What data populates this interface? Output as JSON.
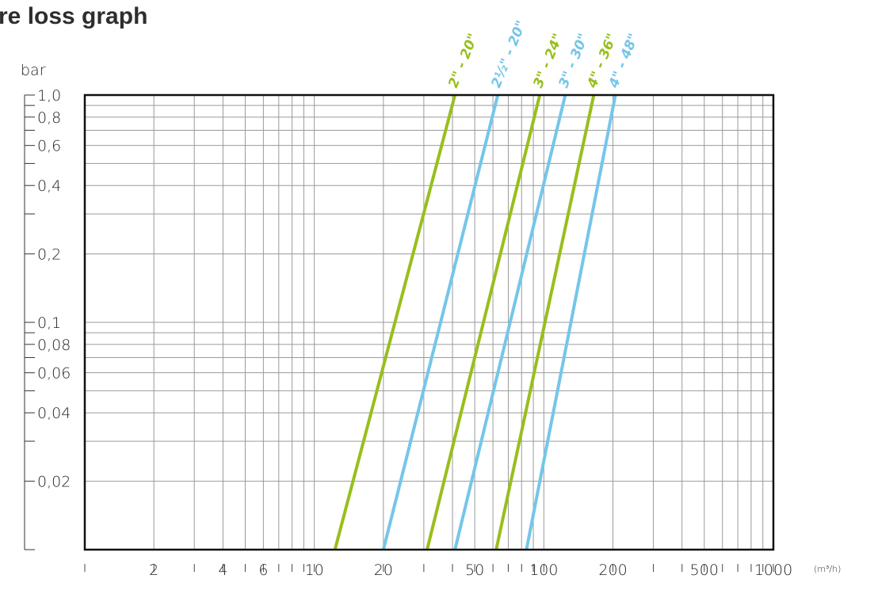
{
  "chart_data": {
    "type": "line",
    "title": "re loss graph",
    "ylabel": "bar",
    "xlabel": "(m³/h)",
    "xscale": "log",
    "yscale": "log",
    "xlim": [
      1,
      1000
    ],
    "ylim": [
      0.01,
      1.0
    ],
    "grid": true,
    "x_tick_labels": [
      {
        "value": 2,
        "label": "2"
      },
      {
        "value": 4,
        "label": "4"
      },
      {
        "value": 6,
        "label": "6"
      },
      {
        "value": 10,
        "label": "10"
      },
      {
        "value": 20,
        "label": "20"
      },
      {
        "value": 50,
        "label": "50"
      },
      {
        "value": 100,
        "label": "100"
      },
      {
        "value": 200,
        "label": "200"
      },
      {
        "value": 500,
        "label": "500"
      },
      {
        "value": 1000,
        "label": "1000"
      }
    ],
    "y_tick_labels": [
      {
        "value": 1.0,
        "label": "1,0"
      },
      {
        "value": 0.8,
        "label": "0,8"
      },
      {
        "value": 0.6,
        "label": "0,6"
      },
      {
        "value": 0.4,
        "label": "0,4"
      },
      {
        "value": 0.2,
        "label": "0,2"
      },
      {
        "value": 0.1,
        "label": "0,1"
      },
      {
        "value": 0.08,
        "label": "0,08"
      },
      {
        "value": 0.06,
        "label": "0,06"
      },
      {
        "value": 0.04,
        "label": "0,04"
      },
      {
        "value": 0.02,
        "label": "0,02"
      }
    ],
    "series": [
      {
        "name": "2\" - 20\"",
        "color": "#97bf1d",
        "x": [
          12.3,
          41
        ],
        "y": [
          0.01,
          1.0
        ]
      },
      {
        "name": "2½\" - 20\"",
        "color": "#74c6e9",
        "x": [
          20,
          63
        ],
        "y": [
          0.01,
          1.0
        ]
      },
      {
        "name": "3\" - 24\"",
        "color": "#97bf1d",
        "x": [
          31,
          96
        ],
        "y": [
          0.01,
          1.0
        ]
      },
      {
        "name": "3\" - 30\"",
        "color": "#74c6e9",
        "x": [
          41,
          124
        ],
        "y": [
          0.01,
          1.0
        ]
      },
      {
        "name": "4\" - 36\"",
        "color": "#97bf1d",
        "x": [
          62,
          165
        ],
        "y": [
          0.01,
          1.0
        ]
      },
      {
        "name": "4\" - 48\"",
        "color": "#74c6e9",
        "x": [
          84,
          205
        ],
        "y": [
          0.01,
          1.0
        ]
      }
    ]
  }
}
